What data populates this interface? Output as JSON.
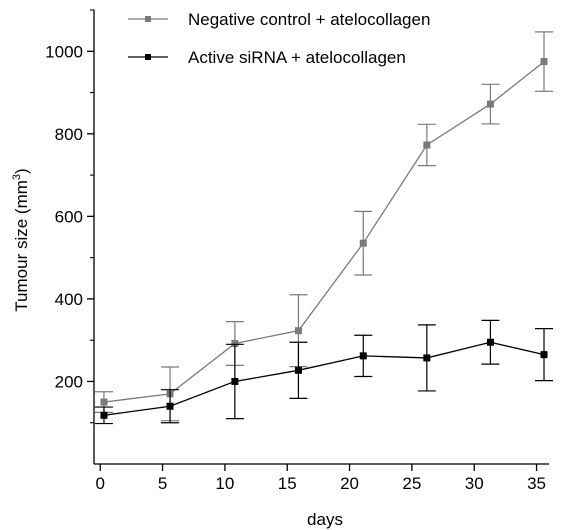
{
  "chart_data": {
    "type": "line",
    "title": "",
    "xlabel": "days",
    "ylabel_main": "Tumour size (mm",
    "ylabel_sup": "3",
    "ylabel_end": ")",
    "xlim": [
      -0.5,
      36
    ],
    "ylim": [
      0,
      1100
    ],
    "x_ticks": [
      0,
      5,
      10,
      15,
      20,
      25,
      30,
      35
    ],
    "x_tick_labels": [
      "0",
      "5",
      "10",
      "15",
      "20",
      "25",
      "30",
      "35"
    ],
    "y_ticks": [
      200,
      400,
      600,
      800,
      1000
    ],
    "y_tick_labels": [
      "200",
      "400",
      "600",
      "800",
      "1000"
    ],
    "y_minor_ticks": [
      100,
      300,
      500,
      700,
      900,
      1100
    ],
    "grid": false,
    "legend_position": "top",
    "series": [
      {
        "name": "Negative control + atelocollagen",
        "color": "#7a7a7a",
        "x": [
          0.3,
          5.6,
          10.8,
          15.9,
          21.1,
          26.2,
          31.3,
          35.6
        ],
        "y": [
          150,
          170,
          292,
          323,
          535,
          773,
          872,
          975
        ],
        "err": [
          25,
          65,
          53,
          87,
          77,
          50,
          48,
          72
        ]
      },
      {
        "name": "Active siRNA + atelocollagen",
        "color": "#000000",
        "x": [
          0.3,
          5.6,
          10.8,
          15.9,
          21.1,
          26.2,
          31.3,
          35.6
        ],
        "y": [
          118,
          140,
          200,
          227,
          262,
          257,
          295,
          265
        ],
        "err": [
          20,
          40,
          90,
          68,
          50,
          80,
          53,
          63
        ]
      }
    ]
  }
}
